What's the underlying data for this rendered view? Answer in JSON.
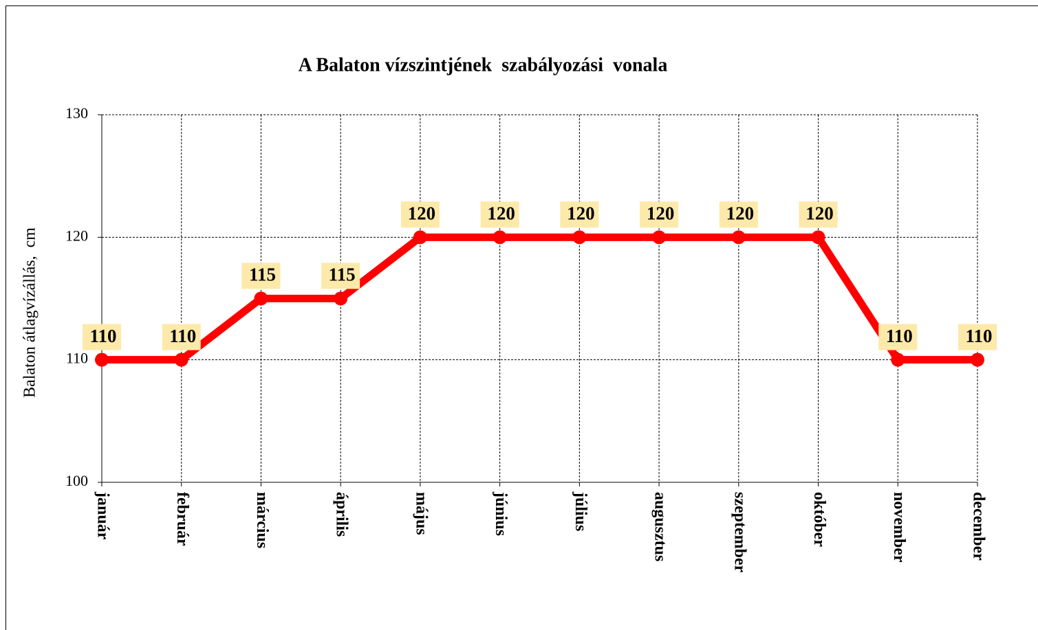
{
  "chart_data": {
    "type": "line",
    "title": "A Balaton vízszintjének  szabályozási  vonala",
    "y_label": "Balaton átlagvízállás,  cm",
    "categories": [
      "január",
      "február",
      "március",
      "április",
      "május",
      "június",
      "július",
      "augusztus",
      "szeptember",
      "október",
      "november",
      "december"
    ],
    "values": [
      110,
      110,
      115,
      115,
      120,
      120,
      120,
      120,
      120,
      120,
      110,
      110
    ],
    "color": "#ff0000",
    "label_background": "#fde9a9",
    "ylim": [
      100,
      130
    ],
    "yticks": [
      100,
      110,
      120,
      130
    ],
    "grid": true
  }
}
